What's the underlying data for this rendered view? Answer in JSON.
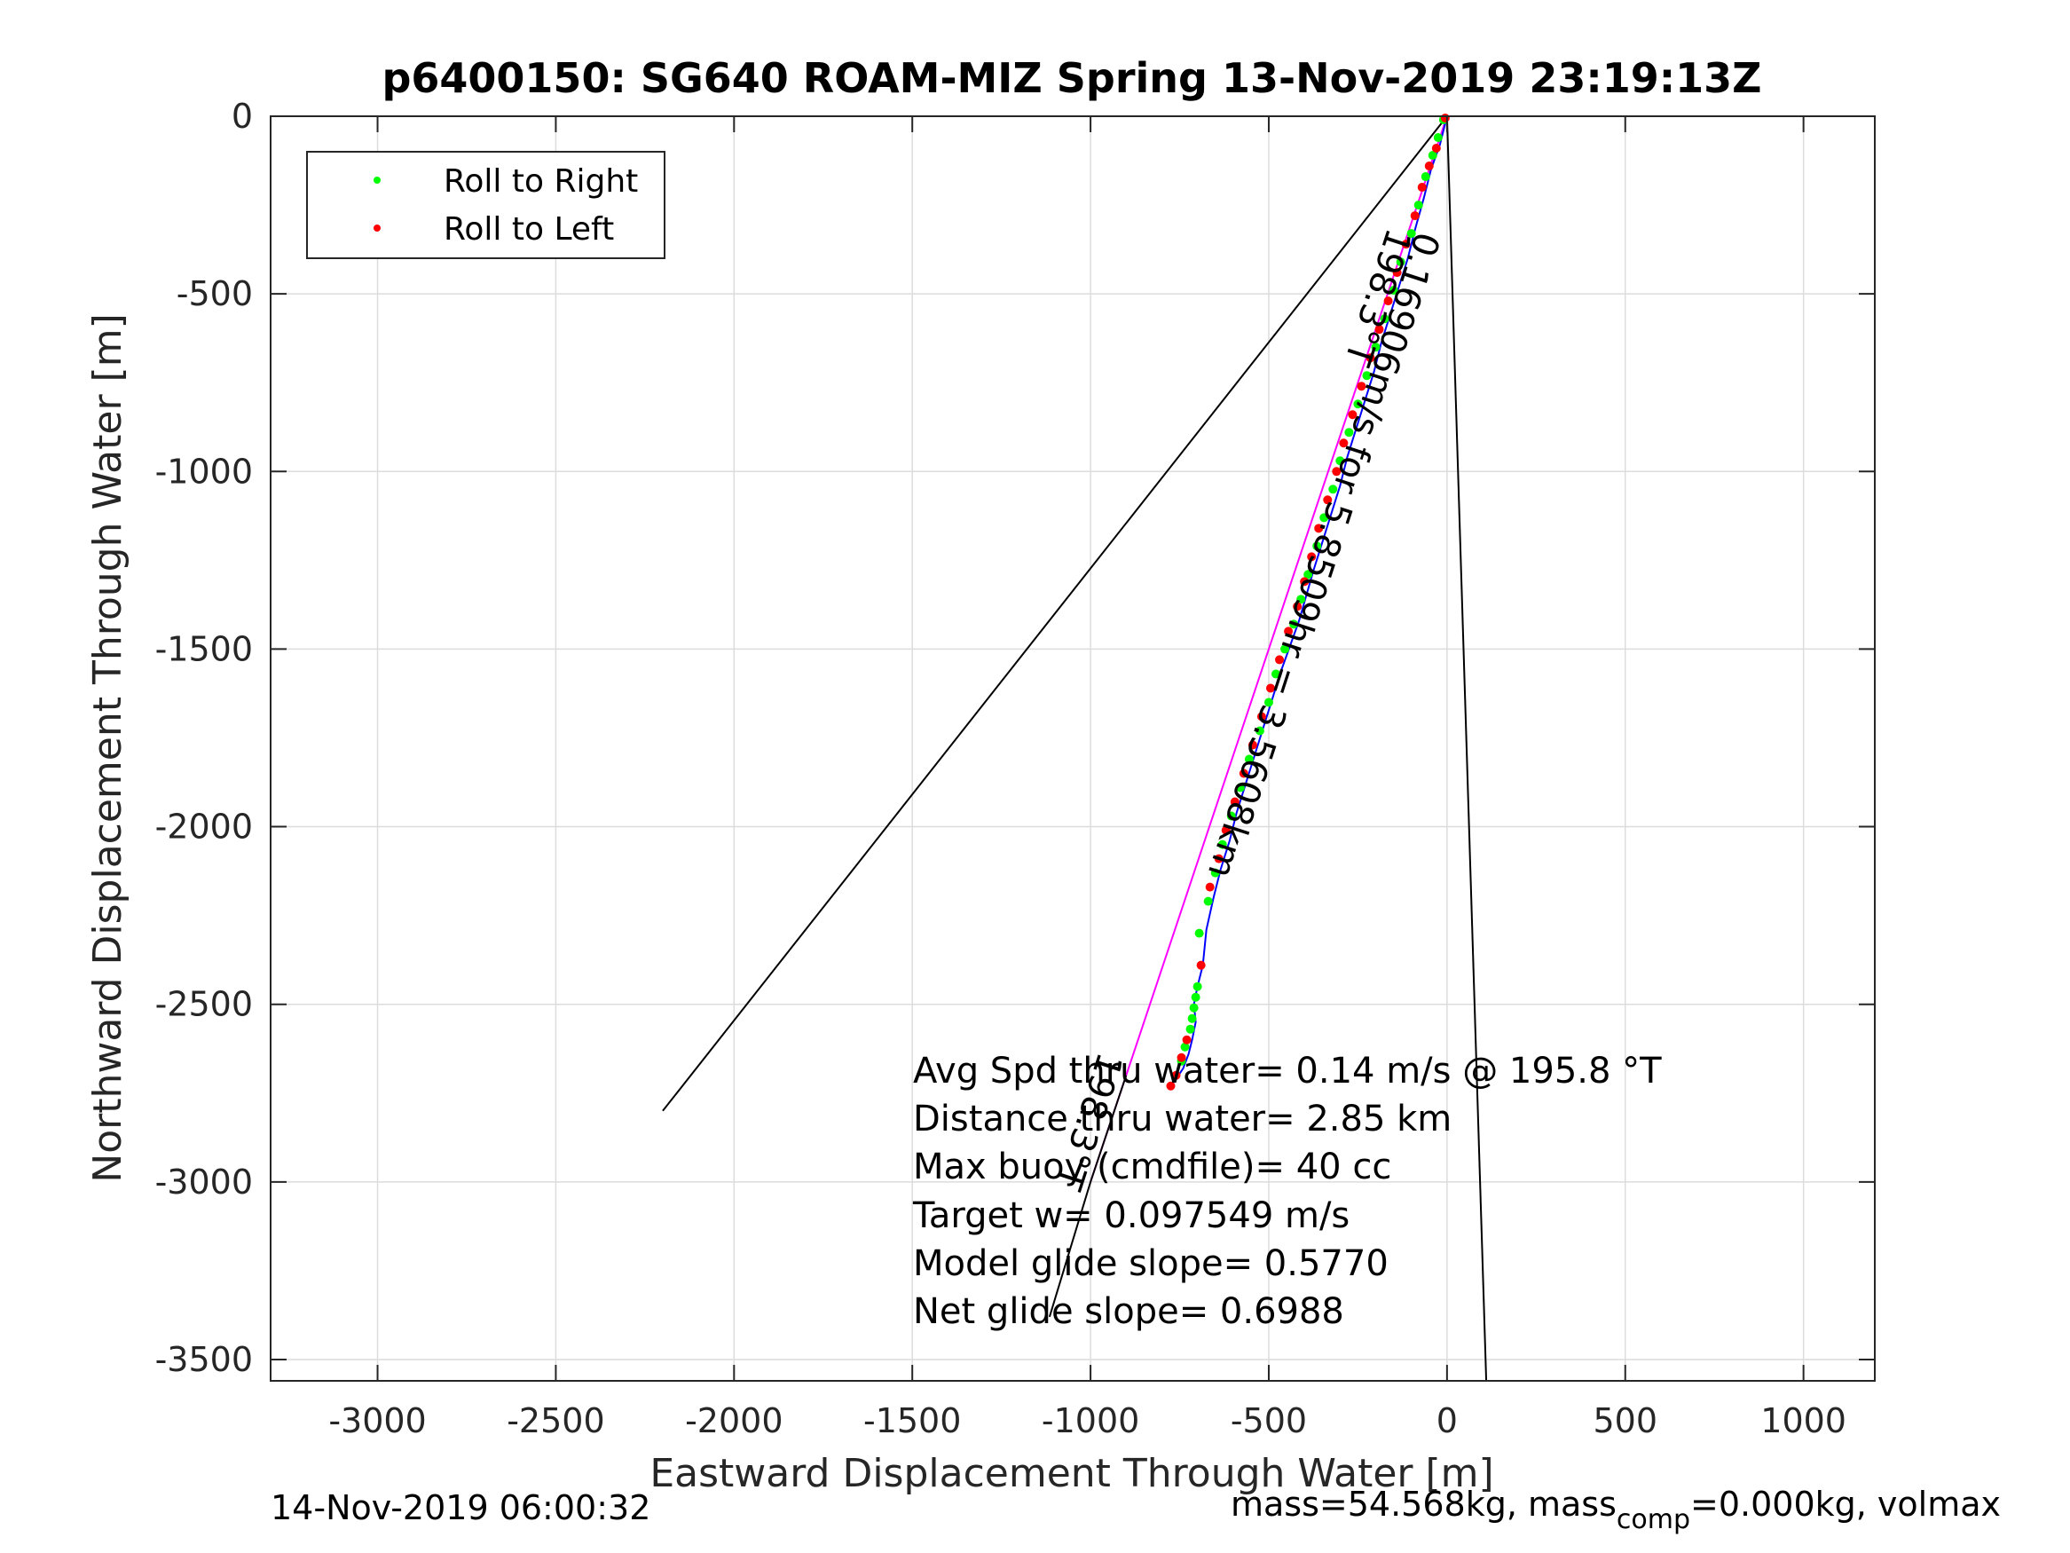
{
  "chart_data": {
    "type": "scatter",
    "title": "p6400150: SG640 ROAM-MIZ Spring 13-Nov-2019 23:19:13Z",
    "xlabel": "Eastward Displacement Through Water [m]",
    "ylabel": "Northward Displacement Through Water [m]",
    "xlim": [
      -3300,
      1200
    ],
    "ylim": [
      -3560,
      0
    ],
    "xticks": [
      -3000,
      -2500,
      -2000,
      -1500,
      -1000,
      -500,
      0,
      500,
      1000
    ],
    "yticks": [
      0,
      -500,
      -1000,
      -1500,
      -2000,
      -2500,
      -3000,
      -3500
    ],
    "grid": true,
    "legend_position": "top-left",
    "legend": [
      {
        "label": "Roll to Right",
        "color": "#00ff00"
      },
      {
        "label": "Roll to Left",
        "color": "#ff0000"
      }
    ],
    "track": {
      "color": "#0000ff",
      "x": [
        0,
        -20,
        -45,
        -65,
        -90,
        -110,
        -135,
        -160,
        -185,
        -205,
        -230,
        -255,
        -280,
        -300,
        -325,
        -350,
        -375,
        -395,
        -415,
        -440,
        -465,
        -490,
        -515,
        -540,
        -565,
        -590,
        -610,
        -635,
        -655,
        -675,
        -685,
        -700,
        -710,
        -705,
        -715,
        -725,
        -740,
        -760,
        -775
      ],
      "y": [
        0,
        -80,
        -150,
        -230,
        -320,
        -400,
        -480,
        -560,
        -640,
        -720,
        -800,
        -880,
        -960,
        -1040,
        -1120,
        -1200,
        -1280,
        -1350,
        -1420,
        -1490,
        -1560,
        -1640,
        -1720,
        -1800,
        -1880,
        -1960,
        -2040,
        -2120,
        -2200,
        -2290,
        -2390,
        -2450,
        -2500,
        -2550,
        -2600,
        -2640,
        -2680,
        -2710,
        -2730
      ]
    },
    "series": [
      {
        "name": "Roll to Right",
        "color": "#00ff00",
        "x": [
          -10,
          -25,
          -40,
          -60,
          -80,
          -100,
          -130,
          -150,
          -175,
          -200,
          -225,
          -250,
          -275,
          -300,
          -320,
          -345,
          -365,
          -390,
          -410,
          -430,
          -455,
          -480,
          -500,
          -525,
          -555,
          -580,
          -605,
          -630,
          -650,
          -670,
          -695,
          -700,
          -705,
          -710,
          -715,
          -720,
          -735,
          -745
        ],
        "y": [
          -10,
          -60,
          -110,
          -170,
          -250,
          -330,
          -410,
          -490,
          -570,
          -650,
          -730,
          -810,
          -890,
          -970,
          -1050,
          -1130,
          -1210,
          -1290,
          -1360,
          -1430,
          -1500,
          -1570,
          -1650,
          -1730,
          -1810,
          -1890,
          -1970,
          -2050,
          -2130,
          -2210,
          -2300,
          -2450,
          -2480,
          -2510,
          -2540,
          -2570,
          -2620,
          -2660
        ]
      },
      {
        "name": "Roll to Left",
        "color": "#ff0000",
        "x": [
          -5,
          -30,
          -50,
          -70,
          -90,
          -115,
          -140,
          -165,
          -190,
          -215,
          -240,
          -265,
          -290,
          -310,
          -335,
          -360,
          -380,
          -400,
          -420,
          -445,
          -470,
          -495,
          -520,
          -545,
          -570,
          -595,
          -620,
          -640,
          -665,
          -690,
          -730,
          -745,
          -760,
          -775
        ],
        "y": [
          -5,
          -90,
          -140,
          -200,
          -280,
          -360,
          -440,
          -520,
          -600,
          -680,
          -760,
          -840,
          -920,
          -1000,
          -1080,
          -1160,
          -1240,
          -1310,
          -1380,
          -1450,
          -1530,
          -1610,
          -1690,
          -1770,
          -1850,
          -1930,
          -2010,
          -2090,
          -2170,
          -2390,
          -2600,
          -2650,
          -2700,
          -2730
        ]
      }
    ],
    "lines": [
      {
        "color": "#000000",
        "x": [
          0,
          -2200
        ],
        "y": [
          0,
          -2800
        ]
      },
      {
        "color": "#000000",
        "x": [
          0,
          110
        ],
        "y": [
          0,
          -3560
        ]
      },
      {
        "color": "#ff00ff",
        "x": [
          0,
          -1000
        ],
        "y": [
          0,
          -3000
        ]
      },
      {
        "color": "#000000",
        "x": [
          -1115,
          -1000
        ],
        "y": [
          -3380,
          -3000
        ]
      },
      {
        "color": "#000000",
        "x": [
          -1000,
          -900
        ],
        "y": [
          -3000,
          -2700
        ]
      }
    ],
    "annotations": [
      {
        "text": "198.3°T",
        "x": -165,
        "y": -310,
        "rotation": 108
      },
      {
        "text": "0.16906m/s for 5.8509hr = 3.5608km",
        "x": -85,
        "y": -320,
        "rotation": 108
      },
      {
        "text": "198.3°T",
        "x": -975,
        "y": -2630,
        "rotation": 108
      }
    ],
    "stats": [
      "Avg Spd thru water=  0.14 m/s @ 195.8 °T",
      "Distance thru water=  2.85 km",
      "Max buoy (cmdfile)= 40 cc",
      "Target w= 0.097549 m/s",
      "Model glide slope= 0.5770",
      "Net glide slope= 0.6988"
    ]
  },
  "footer": {
    "timestamp": "14-Nov-2019 06:00:32",
    "mass_prefix": "mass=54.568kg, mass",
    "mass_sub": "comp",
    "mass_suffix": "=0.000kg, volmax"
  }
}
